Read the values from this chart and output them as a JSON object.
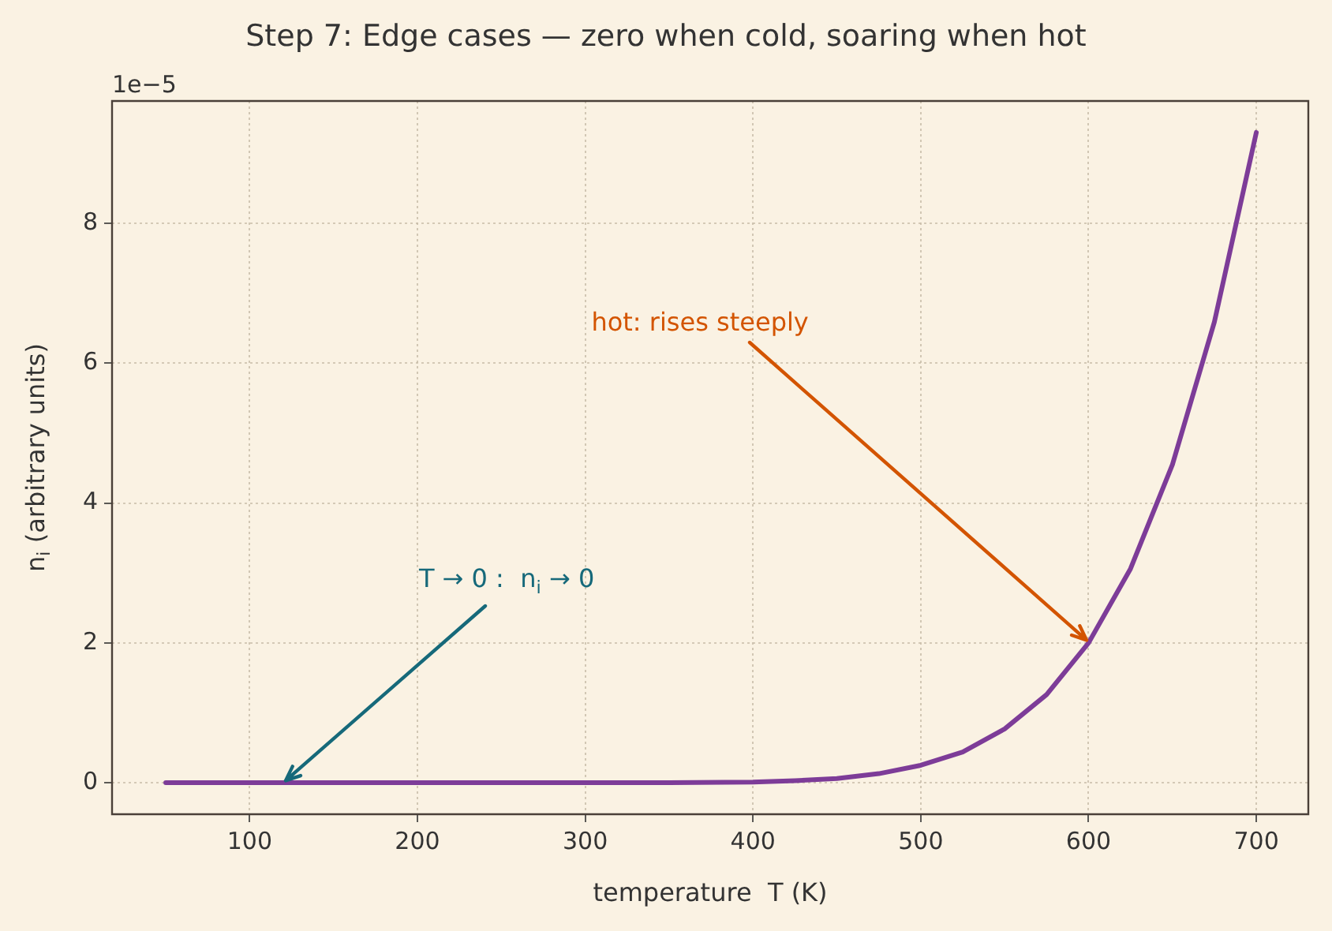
{
  "chart_data": {
    "type": "line",
    "title": "Step 7: Edge cases — zero when cold, soaring when hot",
    "xlabel": "temperature  T (K)",
    "ylabel": "n$_{i}$ (arbitrary units)",
    "x": [
      50,
      100,
      150,
      200,
      250,
      300,
      350,
      400,
      425,
      450,
      475,
      500,
      525,
      550,
      575,
      600,
      625,
      650,
      675,
      700
    ],
    "series": [
      {
        "color": "#7d3c98",
        "values": [
          0,
          0,
          0,
          0,
          0,
          0,
          0,
          0.01,
          0.03,
          0.06,
          0.13,
          0.25,
          0.44,
          0.77,
          1.26,
          2.0,
          3.06,
          4.55,
          6.59,
          9.3
        ]
      }
    ],
    "xlim": [
      18,
      731
    ],
    "ylim": [
      -0.45,
      9.75
    ],
    "xticks": [
      100,
      200,
      300,
      400,
      500,
      600,
      700
    ],
    "yticks": [
      {
        "value": 0,
        "label": "0"
      },
      {
        "value": 2,
        "label": "2"
      },
      {
        "value": 4,
        "label": "4"
      },
      {
        "value": 6,
        "label": "6"
      },
      {
        "value": 8,
        "label": "8"
      }
    ],
    "annotations": [
      "1e−5",
      {
        "text": "T → 0 :  n$_{i}$ → 0",
        "x": 120,
        "y": 0
      },
      {
        "text": "hot: rises steeply",
        "x": 600,
        "y": 2.0
      }
    ],
    "grid": true,
    "legend": false,
    "marker": "none",
    "line_style": "solid"
  }
}
